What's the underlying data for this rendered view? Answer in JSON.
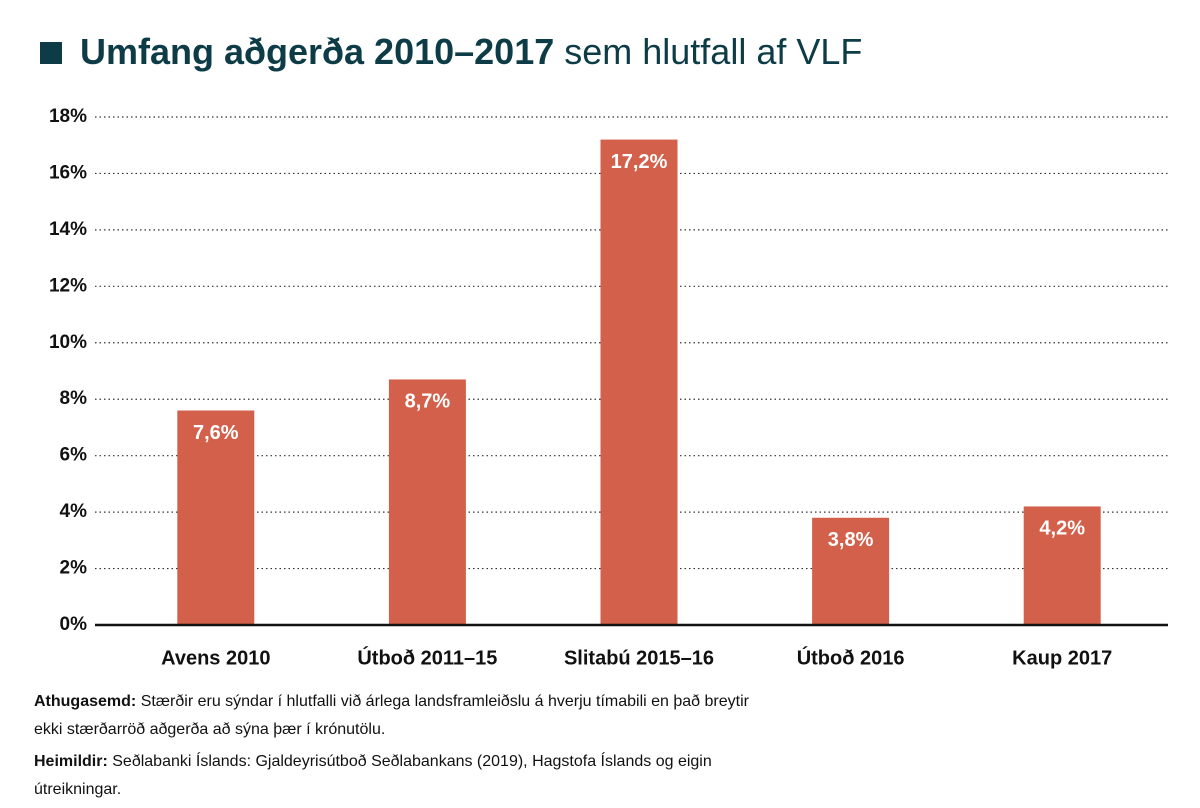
{
  "chart_data": {
    "type": "bar",
    "title": "Umfang aðgerða 2010–2017",
    "subtitle": "sem hlutfall af VLF",
    "categories": [
      "Avens 2010",
      "Útboð 2011–15",
      "Slitabú 2015–16",
      "Útboð 2016",
      "Kaup 2017"
    ],
    "values": [
      7.6,
      8.7,
      17.2,
      3.8,
      4.2
    ],
    "value_labels": [
      "7,6%",
      "8,7%",
      "17,2%",
      "3,8%",
      "4,2%"
    ],
    "color": "#d2604a",
    "ylim": [
      0,
      18
    ],
    "yticks": [
      {
        "value": 0,
        "label": "0%"
      },
      {
        "value": 2,
        "label": "2%"
      },
      {
        "value": 4,
        "label": "4%"
      },
      {
        "value": 6,
        "label": "6%"
      },
      {
        "value": 8,
        "label": "8%"
      },
      {
        "value": 10,
        "label": "10%"
      },
      {
        "value": 12,
        "label": "12%"
      },
      {
        "value": 14,
        "label": "14%"
      },
      {
        "value": 16,
        "label": "16%"
      },
      {
        "value": 18,
        "label": "18%"
      }
    ],
    "grid": true,
    "notes": [
      {
        "label": "Athugasemd:",
        "text": "Stærðir eru sýndar í hlutfalli við árlega landsframleiðslu á hverju tímabili en það breytir ekki stærðarröð aðgerða að sýna þær í krónutölu."
      },
      {
        "label": "Heimildir:",
        "text": "Seðlabanki Íslands: Gjaldeyrisútboð Seðlabankans (2019), Hagstofa Íslands og eigin útreikningar."
      }
    ]
  }
}
